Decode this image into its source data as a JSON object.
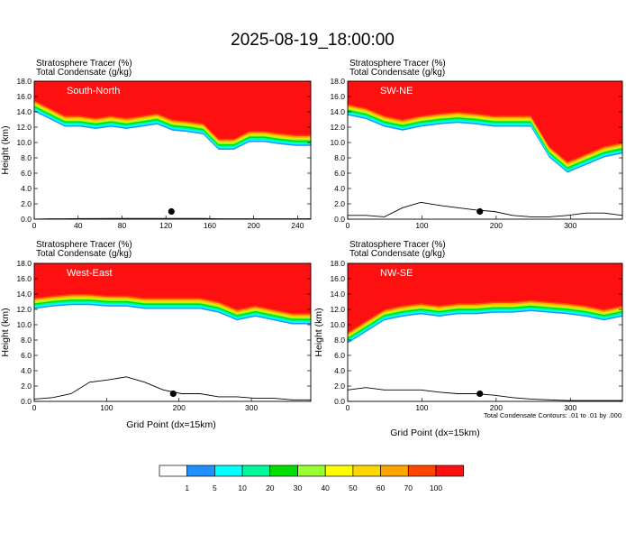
{
  "figure_title": "2025-08-19_18:00:00",
  "field_labels": {
    "shaded": "Stratosphere Tracer   (%)",
    "contours": "Total Condensate   (g/kg)"
  },
  "x_axis_label": "Grid Point (dx=15km)",
  "contour_note": "Total Condensate Contours: .01 to .01 by .000",
  "colorbar": {
    "levels": [
      "1",
      "5",
      "10",
      "20",
      "30",
      "40",
      "50",
      "60",
      "70",
      "100"
    ],
    "colors": [
      "#ffffff",
      "#1e90ff",
      "#00ffff",
      "#00fa9a",
      "#00e000",
      "#9aff32",
      "#ffff00",
      "#ffd700",
      "#ffa500",
      "#ff4500",
      "#ff1010"
    ]
  },
  "chart_data": [
    {
      "type": "heatmap",
      "panel_label": "South-North",
      "ylabel": "Height (km)",
      "ylim": [
        0,
        18
      ],
      "yticks": [
        "0.0",
        "2.0",
        "4.0",
        "6.0",
        "8.0",
        "10.0",
        "12.0",
        "14.0",
        "16.0",
        "18.0"
      ],
      "xlim": [
        0,
        252
      ],
      "xticks": [
        "0",
        "40",
        "80",
        "120",
        "160",
        "200",
        "240"
      ],
      "tropopause_km": [
        15.5,
        14.5,
        13.5,
        13.5,
        13.2,
        13.5,
        13.2,
        13.5,
        13.8,
        13.0,
        12.8,
        12.5,
        10.5,
        10.5,
        11.5,
        11.5,
        11.2,
        11.0,
        11.0
      ],
      "terrain_km": [
        0.0,
        0.05,
        0.05,
        0.08,
        0.08,
        0.1,
        0.1,
        0.1,
        0.1,
        0.1,
        0.1,
        0.1,
        0.05,
        0.05,
        0.05,
        0.05,
        0.05,
        0.05,
        0.05
      ],
      "marker": {
        "x": 125,
        "y_km": 1.0
      }
    },
    {
      "type": "heatmap",
      "panel_label": "SW-NE",
      "ylabel": "",
      "ylim": [
        0,
        18
      ],
      "yticks": [
        "0.0",
        "2.0",
        "4.0",
        "6.0",
        "8.0",
        "10.0",
        "12.0",
        "14.0",
        "16.0",
        "18.0"
      ],
      "xlim": [
        0,
        370
      ],
      "xticks": [
        "0",
        "100",
        "200",
        "300"
      ],
      "tropopause_km": [
        15.0,
        14.5,
        13.5,
        13.0,
        13.5,
        13.8,
        14.0,
        13.8,
        13.5,
        13.5,
        13.5,
        9.5,
        7.5,
        8.5,
        9.5,
        10.0
      ],
      "terrain_km": [
        0.5,
        0.5,
        0.3,
        1.5,
        2.2,
        1.8,
        1.5,
        1.2,
        1.0,
        0.5,
        0.3,
        0.3,
        0.5,
        0.8,
        0.8,
        0.5
      ],
      "marker": {
        "x": 178,
        "y_km": 1.0
      }
    },
    {
      "type": "heatmap",
      "panel_label": "West-East",
      "ylabel": "Height (km)",
      "ylim": [
        0,
        18
      ],
      "yticks": [
        "0.0",
        "2.0",
        "4.0",
        "6.0",
        "8.0",
        "10.0",
        "12.0",
        "14.0",
        "16.0",
        "18.0"
      ],
      "xlim": [
        0,
        382
      ],
      "xticks": [
        "0",
        "100",
        "200",
        "300"
      ],
      "tropopause_km": [
        13.5,
        13.8,
        14.0,
        14.0,
        13.8,
        13.8,
        13.5,
        13.5,
        13.5,
        13.5,
        13.0,
        12.0,
        12.5,
        12.0,
        11.5,
        11.5
      ],
      "terrain_km": [
        0.3,
        0.5,
        1.0,
        2.5,
        2.8,
        3.2,
        2.5,
        1.5,
        1.0,
        1.0,
        0.6,
        0.6,
        0.4,
        0.4,
        0.2,
        0.2
      ],
      "marker": {
        "x": 192,
        "y_km": 1.0
      }
    },
    {
      "type": "heatmap",
      "panel_label": "NW-SE",
      "ylabel": "Height (km)",
      "ylim": [
        0,
        18
      ],
      "yticks": [
        "0.0",
        "2.0",
        "4.0",
        "6.0",
        "8.0",
        "10.0",
        "12.0",
        "14.0",
        "16.0",
        "18.0"
      ],
      "xlim": [
        0,
        370
      ],
      "xticks": [
        "0",
        "100",
        "200",
        "300"
      ],
      "tropopause_km": [
        9.0,
        10.5,
        12.0,
        12.5,
        12.8,
        12.5,
        12.8,
        12.8,
        13.0,
        13.0,
        13.2,
        13.0,
        12.8,
        12.5,
        12.0,
        12.5
      ],
      "terrain_km": [
        1.5,
        1.8,
        1.5,
        1.5,
        1.5,
        1.2,
        1.0,
        1.0,
        0.8,
        0.5,
        0.3,
        0.2,
        0.1,
        0.1,
        0.1,
        0.1
      ],
      "marker": {
        "x": 178,
        "y_km": 1.0
      }
    }
  ]
}
